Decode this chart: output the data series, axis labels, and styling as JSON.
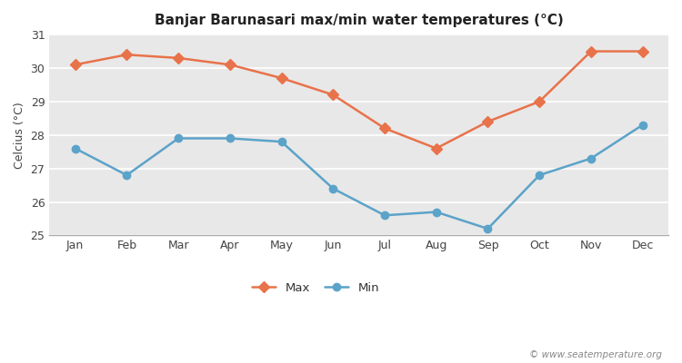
{
  "title": "Banjar Barunasari max/min water temperatures (°C)",
  "ylabel": "Celcius (°C)",
  "months": [
    "Jan",
    "Feb",
    "Mar",
    "Apr",
    "May",
    "Jun",
    "Jul",
    "Aug",
    "Sep",
    "Oct",
    "Nov",
    "Dec"
  ],
  "max_values": [
    30.1,
    30.4,
    30.3,
    30.1,
    29.7,
    29.2,
    28.2,
    27.6,
    28.4,
    29.0,
    30.5,
    30.5
  ],
  "min_values": [
    27.6,
    26.8,
    27.9,
    27.9,
    27.8,
    26.4,
    25.6,
    25.7,
    25.2,
    26.8,
    27.3,
    28.3
  ],
  "max_color": "#e8724a",
  "min_color": "#5ba3c9",
  "fig_bg_color": "#ffffff",
  "plot_bg_color": "#e8e8e8",
  "grid_color": "#ffffff",
  "ylim": [
    25,
    31
  ],
  "yticks": [
    25,
    26,
    27,
    28,
    29,
    30,
    31
  ],
  "watermark": "© www.seatemperature.org",
  "legend_max": "Max",
  "legend_min": "Min",
  "marker_max": "D",
  "marker_min": "o",
  "linewidth": 1.8,
  "markersize_max": 6,
  "markersize_min": 6,
  "title_fontsize": 11,
  "axis_fontsize": 9,
  "tick_fontsize": 9
}
